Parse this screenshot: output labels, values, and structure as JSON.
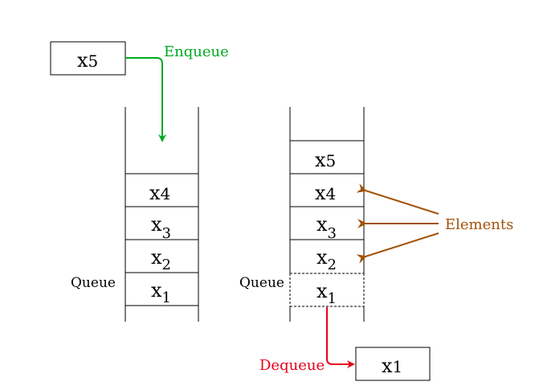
{
  "incoming_box": {
    "main": "x",
    "sub": "5"
  },
  "enqueue_label": "Enqueue",
  "dequeue_label": "Dequeue",
  "elements_label": "Elements",
  "queue_label": "Queue",
  "left_stack": [
    {
      "main": "x",
      "sub": "4"
    },
    {
      "main": "x",
      "sub": "3"
    },
    {
      "main": "x",
      "sub": "2"
    },
    {
      "main": "x",
      "sub": "1"
    }
  ],
  "right_stack": [
    {
      "main": "x",
      "sub": "5"
    },
    {
      "main": "x",
      "sub": "4"
    },
    {
      "main": "x",
      "sub": "3"
    },
    {
      "main": "x",
      "sub": "2"
    },
    {
      "main": "x",
      "sub": "1"
    }
  ],
  "outgoing_box": {
    "main": "x",
    "sub": "1"
  },
  "colors": {
    "enqueue": "#00aa22",
    "dequeue": "#e8001c",
    "elements": "#a25208",
    "line": "#000000"
  }
}
